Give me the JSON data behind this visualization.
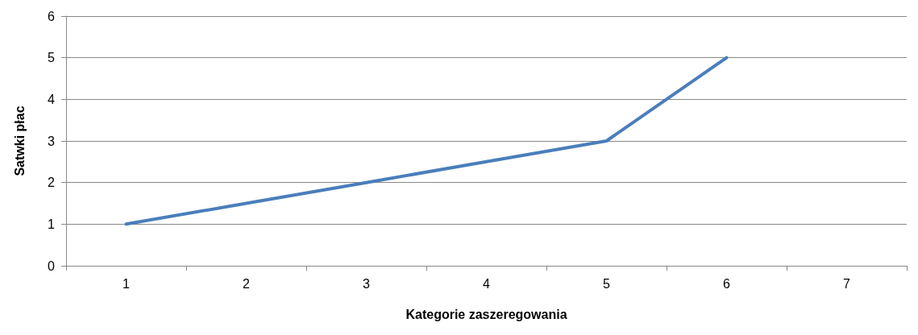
{
  "chart_data": {
    "type": "line",
    "xlabel": "Kategorie zaszeregowania",
    "ylabel": "Satwki płac",
    "categories": [
      "1",
      "2",
      "3",
      "4",
      "5",
      "6",
      "7"
    ],
    "series": [
      {
        "color": "#4a7ebb",
        "values": [
          1,
          1.5,
          2,
          2.5,
          3,
          5,
          null
        ]
      }
    ],
    "ylim": [
      0,
      6
    ],
    "yticks": [
      0,
      1,
      2,
      3,
      4,
      5,
      6
    ],
    "grid": "y",
    "marker": "none",
    "line_style": "solid"
  }
}
